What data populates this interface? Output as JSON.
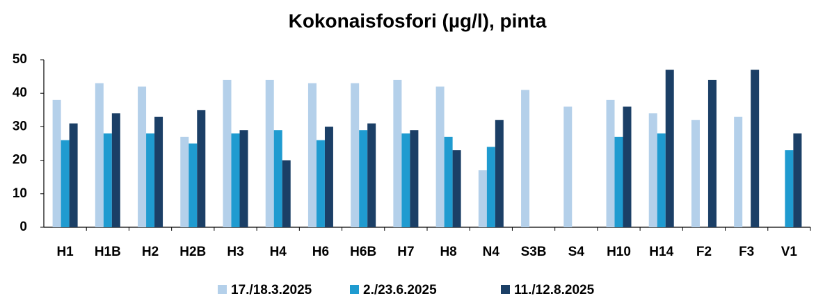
{
  "chart_data": {
    "type": "bar",
    "title": "Kokonaisfosfori (µg/l), pinta",
    "categories": [
      "H1",
      "H1B",
      "H2",
      "H2B",
      "H3",
      "H4",
      "H6",
      "H6B",
      "H7",
      "H8",
      "N4",
      "S3B",
      "S4",
      "H10",
      "H14",
      "F2",
      "F3",
      "V1"
    ],
    "series": [
      {
        "name": "17./18.3.2025",
        "color": "#b4d0ea",
        "values": [
          38,
          43,
          42,
          27,
          44,
          44,
          43,
          43,
          44,
          42,
          17,
          41,
          36,
          38,
          34,
          32,
          33,
          null
        ]
      },
      {
        "name": "2./23.6.2025",
        "color": "#1f9bd0",
        "values": [
          26,
          28,
          28,
          25,
          28,
          29,
          26,
          29,
          28,
          27,
          24,
          null,
          null,
          27,
          28,
          null,
          null,
          23
        ]
      },
      {
        "name": "11./12.8.2025",
        "color": "#1b3f66",
        "values": [
          31,
          34,
          33,
          35,
          29,
          20,
          30,
          31,
          29,
          23,
          32,
          null,
          null,
          36,
          47,
          44,
          47,
          28
        ]
      }
    ],
    "ylim": [
      0,
      50
    ],
    "yticks": [
      0,
      10,
      20,
      30,
      40,
      50
    ],
    "grid": false,
    "legend": "bottom"
  }
}
